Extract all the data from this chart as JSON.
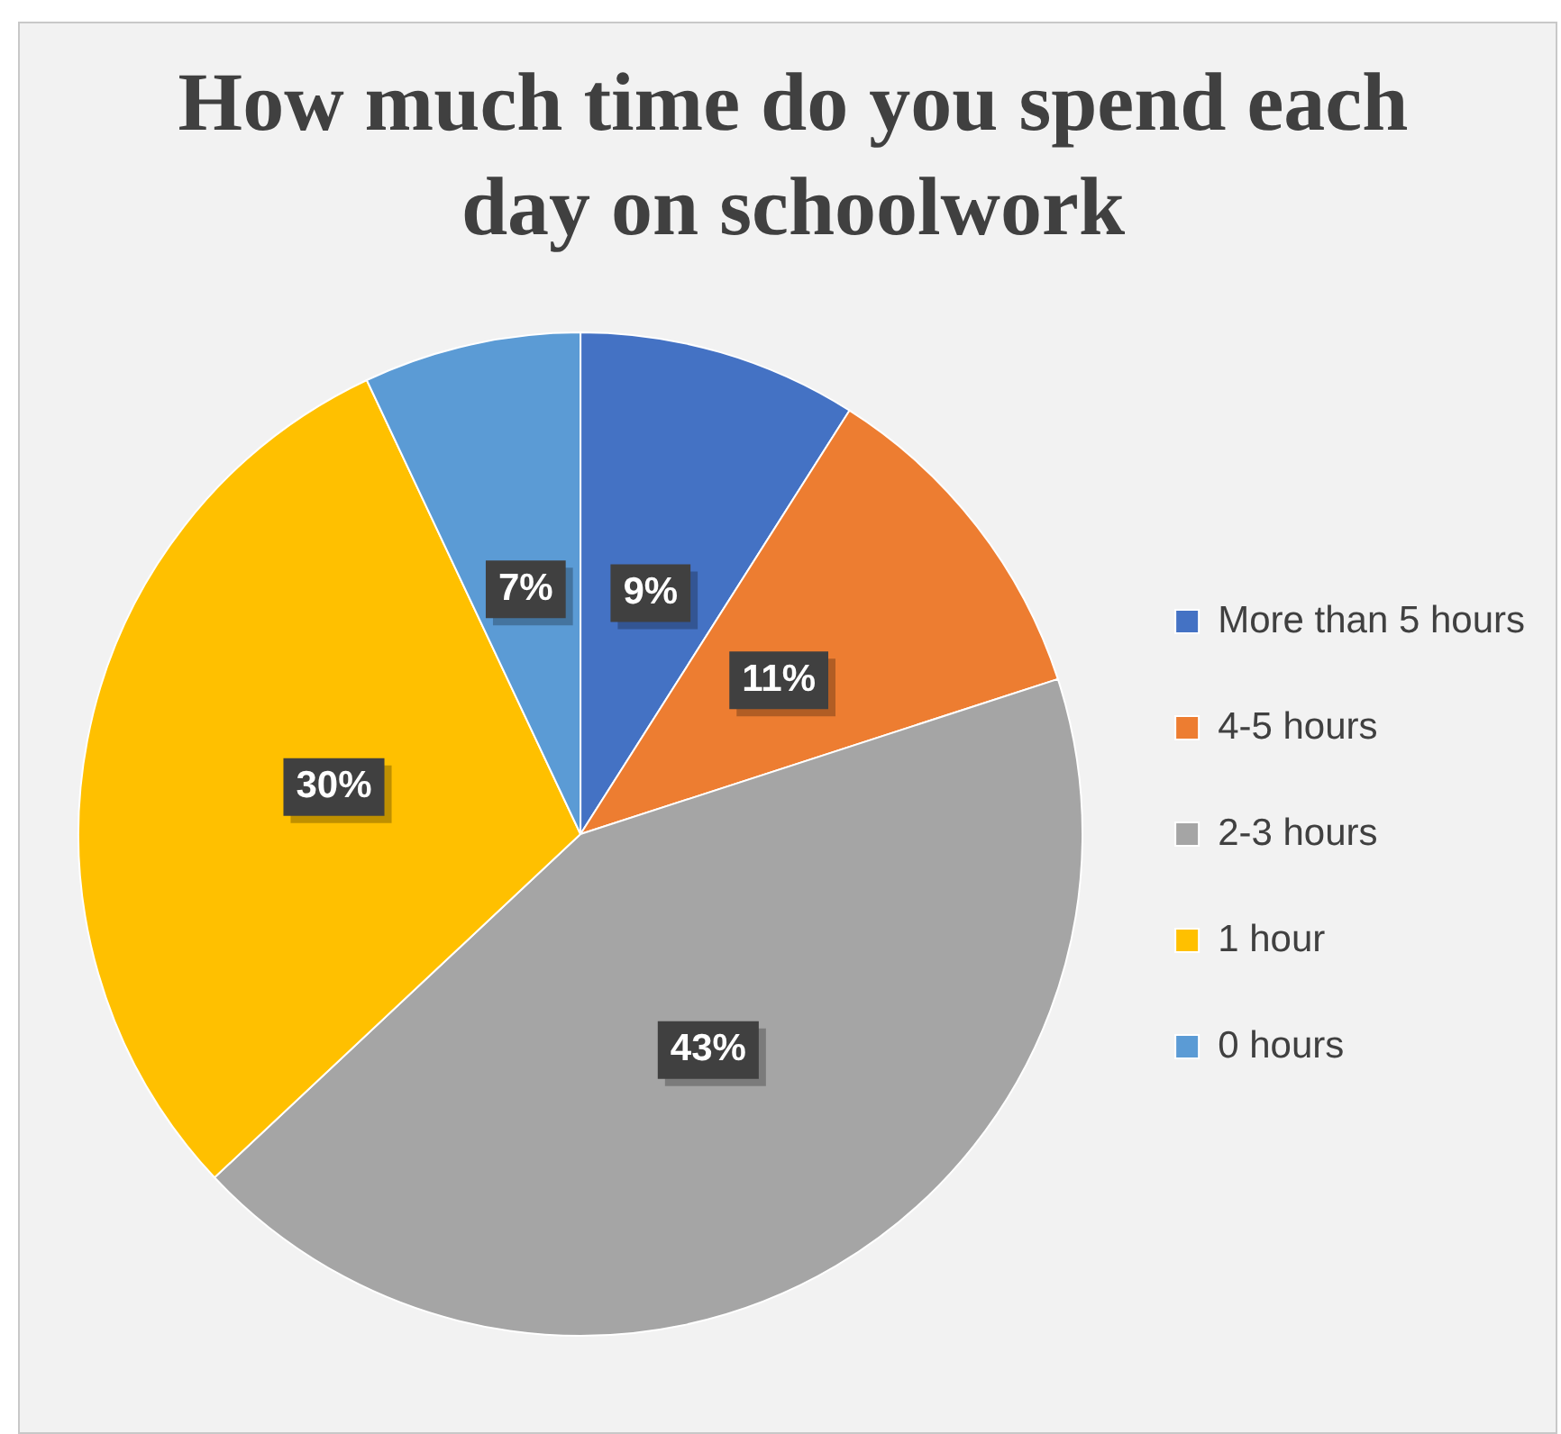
{
  "chart_data": {
    "type": "pie",
    "title": "How much time do you spend each day on schoolwork",
    "categories": [
      "More than 5 hours",
      "4-5 hours",
      "2-3 hours",
      "1 hour",
      "0 hours"
    ],
    "values": [
      9,
      11,
      43,
      30,
      7
    ],
    "colors": [
      "#4472c4",
      "#ed7d31",
      "#a5a5a5",
      "#ffc000",
      "#5b9bd5"
    ],
    "value_labels": [
      "9%",
      "11%",
      "43%",
      "30%",
      "7%"
    ],
    "legend": "right"
  }
}
